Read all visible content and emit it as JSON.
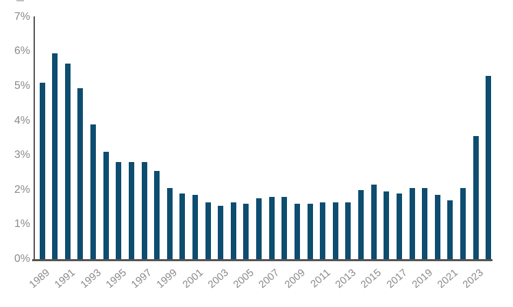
{
  "chart_data": {
    "type": "bar",
    "title": "",
    "xlabel": "",
    "ylabel": "",
    "ylim": [
      0,
      7
    ],
    "grid": false,
    "legend_position": "none",
    "y_tick_labels": [
      "0%",
      "1%",
      "2%",
      "3%",
      "4%",
      "5%",
      "6%",
      "7%"
    ],
    "x_label_every": 2,
    "categories": [
      "1989",
      "1990",
      "1991",
      "1992",
      "1993",
      "1994",
      "1995",
      "1996",
      "1997",
      "1998",
      "1999",
      "2000",
      "2001",
      "2002",
      "2003",
      "2004",
      "2005",
      "2006",
      "2007",
      "2008",
      "2009",
      "2010",
      "2011",
      "2012",
      "2013",
      "2014",
      "2015",
      "2016",
      "2017",
      "2018",
      "2019",
      "2020",
      "2021",
      "2022",
      "2023",
      "2024"
    ],
    "values": [
      5.1,
      5.95,
      5.65,
      4.95,
      3.9,
      3.1,
      2.8,
      2.8,
      2.8,
      2.55,
      2.05,
      1.9,
      1.85,
      1.65,
      1.55,
      1.65,
      1.6,
      1.75,
      1.8,
      1.8,
      1.6,
      1.6,
      1.65,
      1.65,
      1.65,
      2.0,
      2.15,
      1.95,
      1.9,
      2.05,
      2.05,
      1.85,
      1.7,
      2.05,
      3.55,
      5.3
    ],
    "colors": {
      "bar": "#0d4d6f",
      "axis_line": "#575254",
      "tick_label": "#8d8888",
      "background": "#ffffff"
    }
  }
}
